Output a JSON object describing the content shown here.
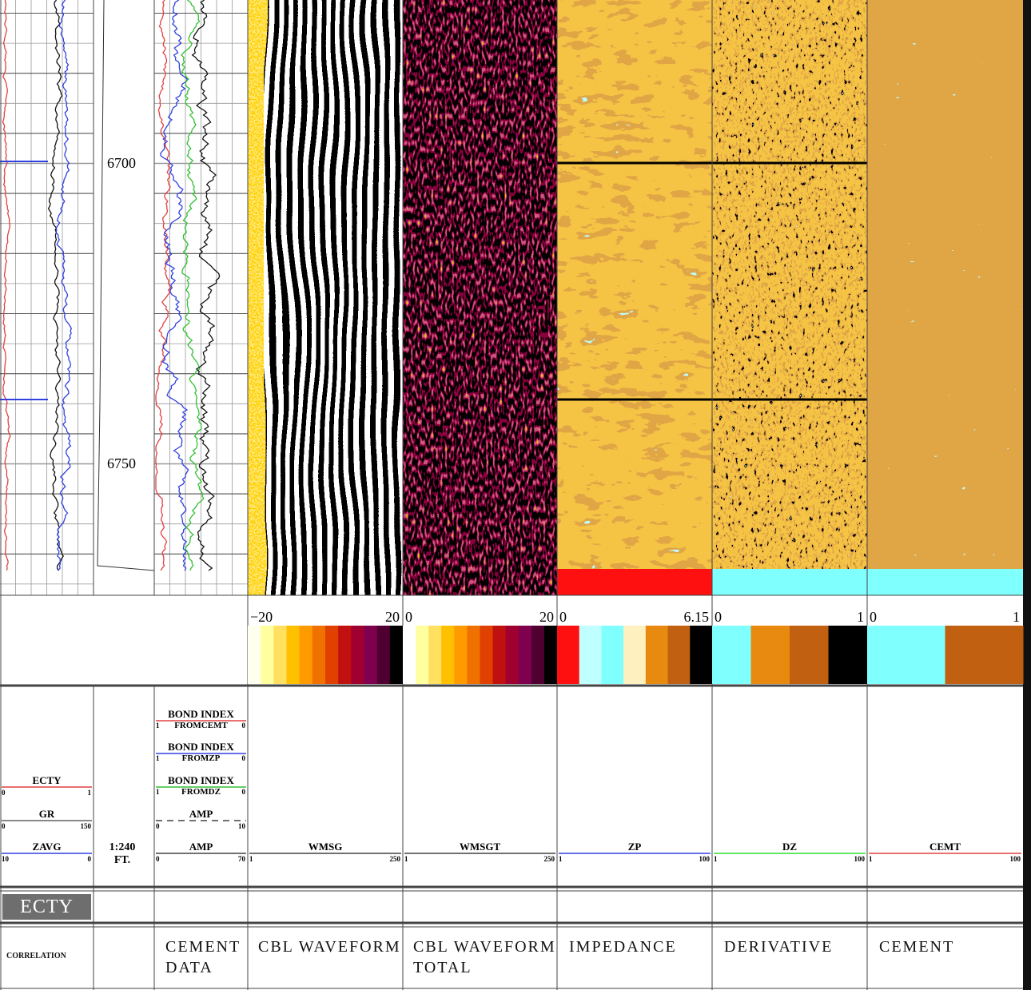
{
  "depth_track": {
    "scale": "1:240",
    "unit": "FT.",
    "depth_labels": [
      "6700",
      "6750"
    ]
  },
  "color_scales": [
    {
      "min": "−20",
      "max": "20",
      "colors": [
        "#fffff0",
        "#ffffa0",
        "#ffe060",
        "#ffc000",
        "#ff9a00",
        "#f07000",
        "#e04000",
        "#c01010",
        "#a00030",
        "#800050",
        "#500030",
        "#000000"
      ]
    },
    {
      "min": "0",
      "max": "20",
      "colors": [
        "#ffffff",
        "#ffffa0",
        "#ffe060",
        "#ffc000",
        "#ff9a00",
        "#f07000",
        "#e04000",
        "#c01010",
        "#a00030",
        "#800050",
        "#500030",
        "#000000"
      ]
    },
    {
      "min": "0",
      "max": "6.15",
      "colors": [
        "#ff1010",
        "#c0ffff",
        "#80ffff",
        "#fff0c0",
        "#e88a10",
        "#c06010",
        "#000000"
      ]
    },
    {
      "min": "0",
      "max": "1",
      "colors": [
        "#80ffff",
        "#e88a10",
        "#c06010",
        "#000000"
      ]
    },
    {
      "min": "0",
      "max": "1",
      "colors": [
        "#80ffff",
        "#c06010"
      ]
    }
  ],
  "header": {
    "correlation": [
      {
        "name": "ECTY",
        "left": "0",
        "right": "1",
        "color": "#e04040"
      },
      {
        "name": "GR",
        "left": "0",
        "right": "150",
        "color": "#606060"
      },
      {
        "name": "ZAVG",
        "left": "10",
        "right": "0",
        "color": "#3040e0"
      }
    ],
    "cement_data": [
      {
        "name": "BOND INDEX",
        "sub": "FROMCEMT",
        "left": "1",
        "right": "0",
        "color": "#e04040"
      },
      {
        "name": "BOND INDEX",
        "sub": "FROMZP",
        "left": "1",
        "right": "0",
        "color": "#3040e0"
      },
      {
        "name": "BOND INDEX",
        "sub": "FROMDZ",
        "left": "1",
        "right": "0",
        "color": "#30c030"
      },
      {
        "name": "AMP",
        "left": "0",
        "right": "10",
        "color": "#404040",
        "dashed": true
      },
      {
        "name": "AMP",
        "left": "0",
        "right": "70",
        "color": "#404040"
      }
    ],
    "tracks": [
      {
        "name": "WMSG",
        "left": "1",
        "right": "250",
        "color": "#404040"
      },
      {
        "name": "WMSGT",
        "left": "1",
        "right": "250",
        "color": "#404040"
      },
      {
        "name": "ZP",
        "left": "1",
        "right": "100",
        "color": "#3040e0"
      },
      {
        "name": "DZ",
        "left": "1",
        "right": "100",
        "color": "#30e030"
      },
      {
        "name": "CEMT",
        "left": "1",
        "right": "100",
        "color": "#e04040"
      }
    ]
  },
  "button": "ECTY",
  "track_titles": [
    "CORRELATION",
    "CEMENT DATA",
    "CBL WAVEFORM",
    "CBL WAVEFORM TOTAL",
    "IMPEDANCE",
    "DERIVATIVE",
    "CEMENT"
  ]
}
